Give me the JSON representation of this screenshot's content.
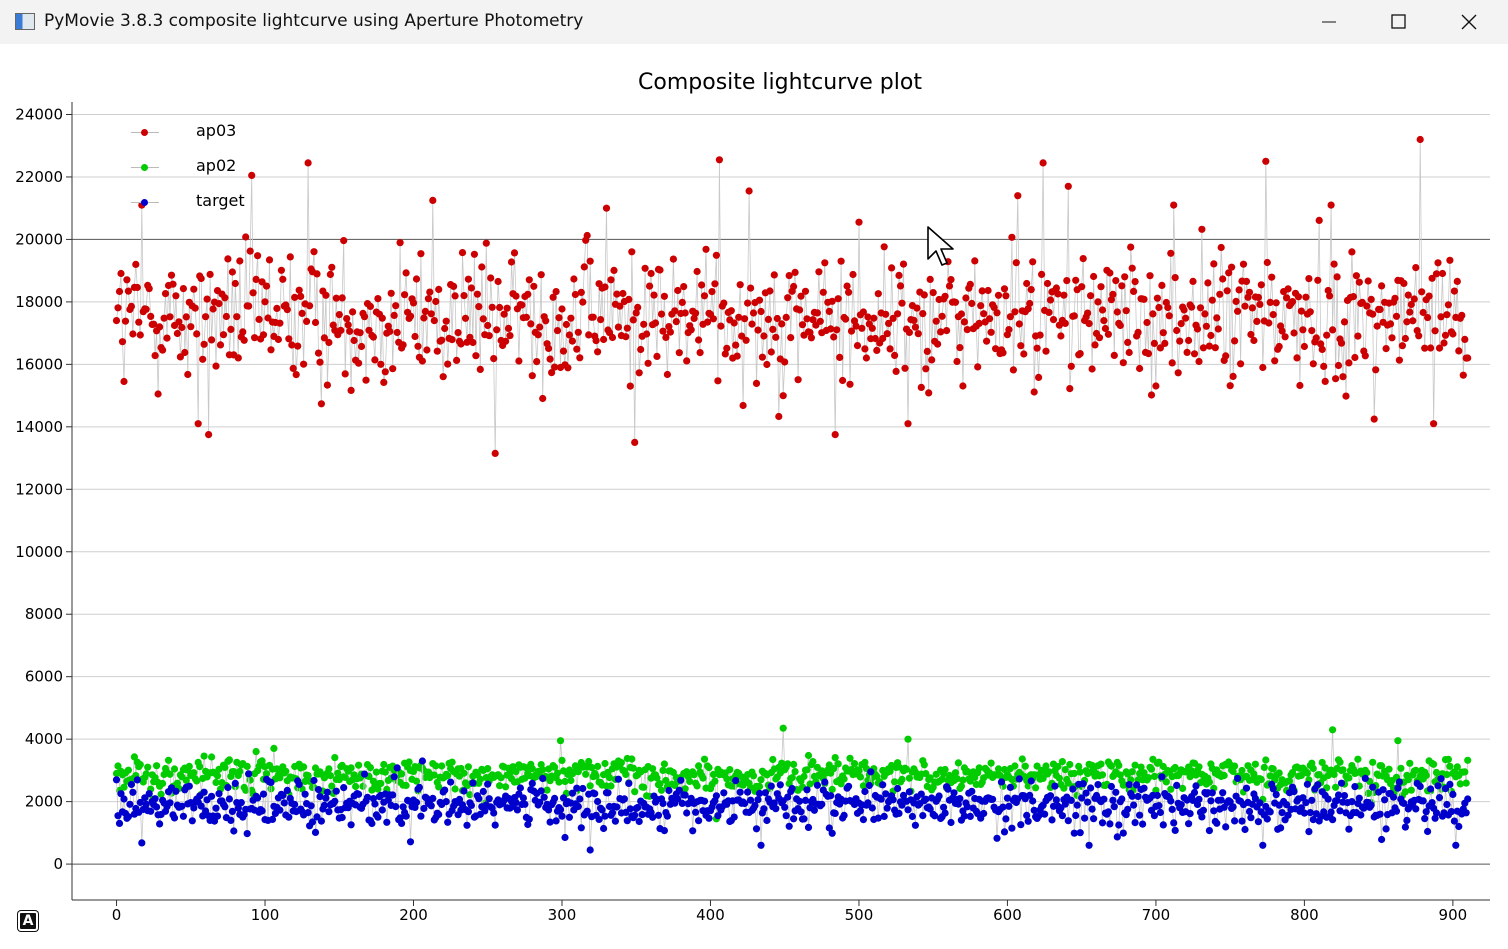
{
  "window": {
    "title": "PyMovie 3.8.3 composite lightcurve using Aperture Photometry",
    "minimize_symbol": "—",
    "maximize_symbol": "☐",
    "close_symbol": "✕"
  },
  "corner_button": {
    "label": "A"
  },
  "icons": {
    "app": "pymovie-app-icon",
    "cursor": "mouse-pointer-icon"
  },
  "chart_data": {
    "type": "scatter",
    "title": "Composite lightcurve plot",
    "xlabel": "",
    "ylabel": "",
    "xlim": [
      -30,
      925
    ],
    "ylim": [
      -1150,
      24400
    ],
    "xticks": [
      0,
      100,
      200,
      300,
      400,
      500,
      600,
      700,
      800,
      900
    ],
    "yticks": [
      0,
      2000,
      4000,
      6000,
      8000,
      10000,
      12000,
      14000,
      16000,
      18000,
      20000,
      22000,
      24000
    ],
    "grid": true,
    "legend_position": "top-left",
    "connecting_lines": true,
    "line_color": "#c8c8c8",
    "n_points": 911,
    "series": [
      {
        "name": "ap03",
        "color": "#cc0000",
        "mean": 17500,
        "spread_note": "values fluctuate mostly between 14000 and 21000 (min ≈ 13150, max ≈ 23200)",
        "sample": [
          [
            0,
            17400
          ],
          [
            5,
            15450
          ],
          [
            17,
            21100
          ],
          [
            29,
            17200
          ],
          [
            55,
            14100
          ],
          [
            62,
            13750
          ],
          [
            91,
            22050
          ],
          [
            129,
            22450
          ],
          [
            213,
            21250
          ],
          [
            255,
            13150
          ],
          [
            330,
            21000
          ],
          [
            349,
            13500
          ],
          [
            406,
            22550
          ],
          [
            426,
            21550
          ],
          [
            484,
            13750
          ],
          [
            500,
            20550
          ],
          [
            533,
            14100
          ],
          [
            607,
            21400
          ],
          [
            624,
            22450
          ],
          [
            641,
            21700
          ],
          [
            712,
            21100
          ],
          [
            774,
            22500
          ],
          [
            818,
            21100
          ],
          [
            878,
            23200
          ],
          [
            887,
            14100
          ],
          [
            908,
            16800
          ]
        ]
      },
      {
        "name": "ap02",
        "color": "#00cc00",
        "mean": 2850,
        "spread_note": "values fluctuate mostly between 2200 and 3700 (max ≈ 4350)",
        "sample": [
          [
            0,
            2900
          ],
          [
            94,
            3600
          ],
          [
            299,
            3950
          ],
          [
            404,
            1450
          ],
          [
            449,
            4350
          ],
          [
            533,
            4000
          ],
          [
            819,
            4300
          ],
          [
            863,
            3950
          ],
          [
            908,
            2950
          ]
        ]
      },
      {
        "name": "target",
        "color": "#0000cc",
        "mean": 1900,
        "spread_note": "values fluctuate mostly between 900 and 3000 (min ≈ 450)",
        "sample": [
          [
            0,
            2700
          ],
          [
            63,
            1400
          ],
          [
            206,
            3300
          ],
          [
            302,
            850
          ],
          [
            319,
            450
          ],
          [
            434,
            600
          ],
          [
            655,
            600
          ],
          [
            772,
            600
          ],
          [
            902,
            600
          ],
          [
            908,
            1950
          ]
        ]
      }
    ]
  }
}
